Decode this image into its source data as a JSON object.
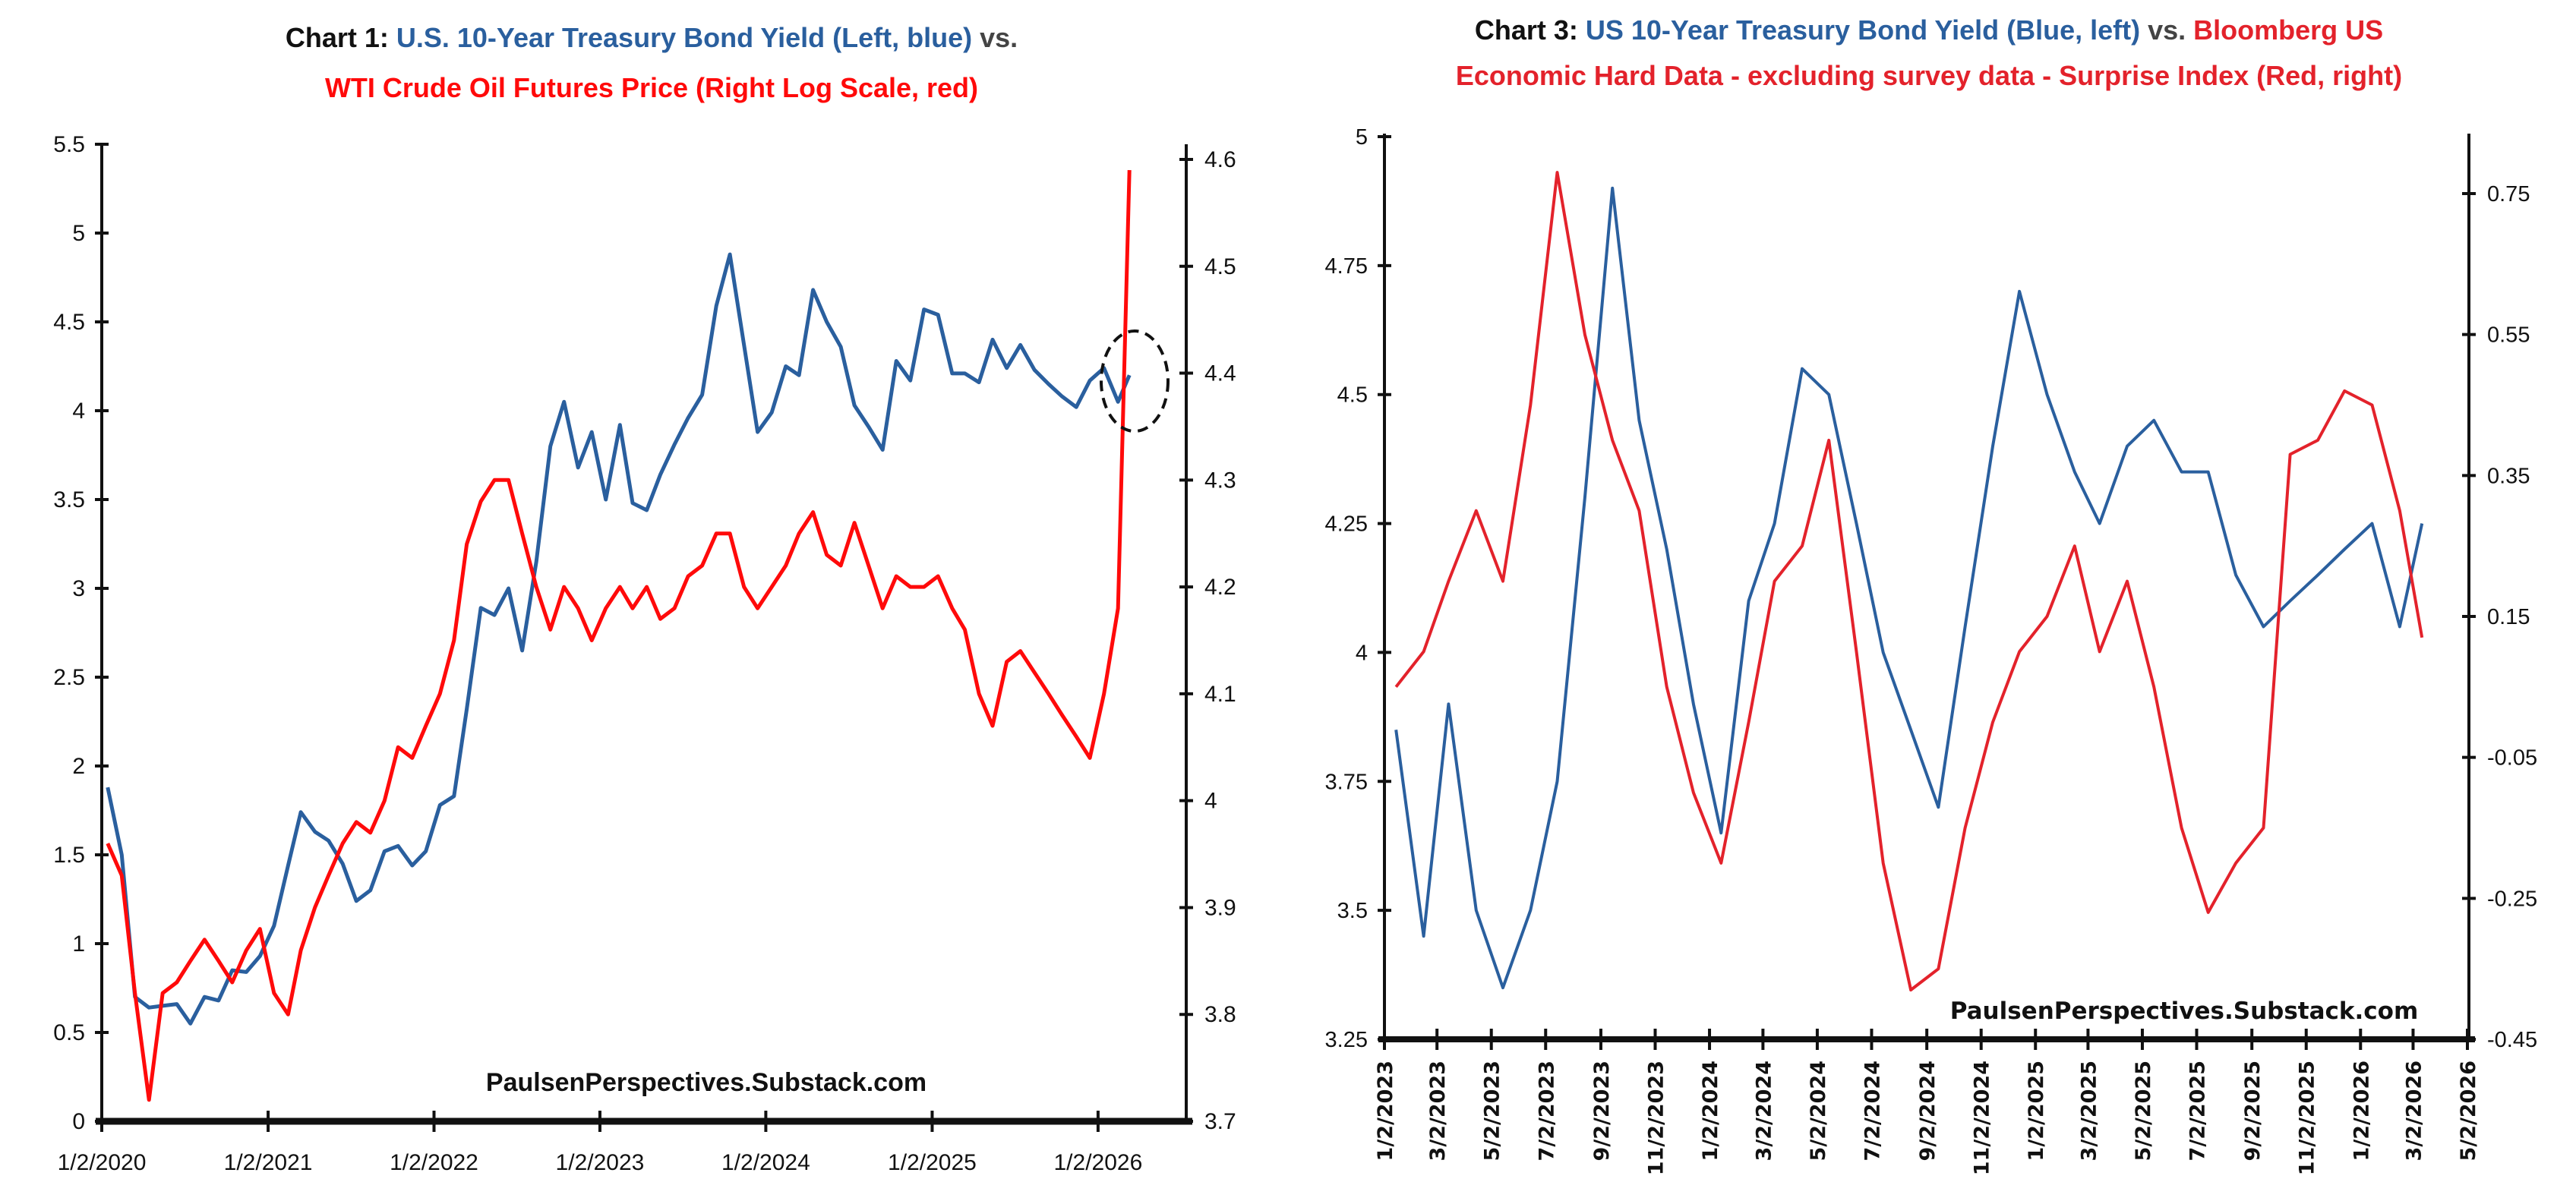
{
  "colors": {
    "blue": "#2a5f9e",
    "red1": "#ff0a0a",
    "red3": "#e3222b",
    "title_black": "#111111",
    "title_gray": "#444444"
  },
  "chart_data": [
    {
      "type": "line",
      "title_parts": [
        {
          "text": "Chart 1: ",
          "color": "#111111"
        },
        {
          "text": "U.S. 10-Year Treasury Bond Yield (Left, blue)",
          "color": "#2a5f9e"
        },
        {
          "text": " vs.",
          "color": "#444444"
        }
      ],
      "title_line2": "WTI Crude Oil Futures Price (Right Log Scale, red)",
      "watermark": "PaulsenPerspectives.Substack.com",
      "x_ticks": [
        "1/2/2020",
        "1/2/2021",
        "1/2/2022",
        "1/2/2023",
        "1/2/2024",
        "1/2/2025",
        "1/2/2026"
      ],
      "xlim": [
        "2020-01-02",
        "2026-07-15"
      ],
      "left_axis": {
        "ylim": [
          0,
          5.5
        ],
        "ticks": [
          "0",
          "0.5",
          "1",
          "1.5",
          "2",
          "2.5",
          "3",
          "3.5",
          "4",
          "4.5",
          "5",
          "5.5"
        ]
      },
      "right_axis": {
        "ylim": [
          3.7,
          4.6
        ],
        "scale": "log",
        "ticks": [
          "3.7",
          "3.8",
          "3.9",
          "4",
          "4.1",
          "4.2",
          "4.3",
          "4.4",
          "4.5",
          "4.6"
        ]
      },
      "annotation": "dashed circle around early-2026 endpoints",
      "grid": false,
      "x_start": "2020-01",
      "x_step": "month",
      "series": [
        {
          "axis": "left",
          "color": "#2a5f9e",
          "values": [
            1.88,
            1.5,
            0.7,
            0.64,
            0.65,
            0.66,
            0.55,
            0.7,
            0.68,
            0.85,
            0.84,
            0.93,
            1.1,
            1.44,
            1.74,
            1.63,
            1.58,
            1.45,
            1.24,
            1.3,
            1.52,
            1.55,
            1.44,
            1.52,
            1.78,
            1.83,
            2.32,
            2.89,
            2.85,
            3.0,
            2.65,
            3.15,
            3.8,
            4.05,
            3.68,
            3.88,
            3.5,
            3.92,
            3.48,
            3.44,
            3.64,
            3.81,
            3.96,
            4.09,
            4.59,
            4.88,
            4.37,
            3.88,
            3.99,
            4.25,
            4.2,
            4.68,
            4.5,
            4.36,
            4.03,
            3.91,
            3.78,
            4.28,
            4.17,
            4.57,
            4.54,
            4.21,
            4.21,
            4.16,
            4.4,
            4.24,
            4.37,
            4.23,
            4.15,
            4.08,
            4.02,
            4.17,
            4.24,
            4.05,
            4.2
          ]
        },
        {
          "axis": "right",
          "color": "#ff0a0a",
          "values": [
            3.96,
            3.93,
            3.82,
            3.72,
            3.82,
            3.83,
            3.85,
            3.87,
            3.85,
            3.83,
            3.86,
            3.88,
            3.82,
            3.8,
            3.86,
            3.9,
            3.93,
            3.96,
            3.98,
            3.97,
            4.0,
            4.05,
            4.04,
            4.07,
            4.1,
            4.15,
            4.24,
            4.28,
            4.3,
            4.3,
            4.25,
            4.2,
            4.16,
            4.2,
            4.18,
            4.15,
            4.18,
            4.2,
            4.18,
            4.2,
            4.17,
            4.18,
            4.21,
            4.22,
            4.25,
            4.25,
            4.2,
            4.18,
            4.2,
            4.22,
            4.25,
            4.27,
            4.23,
            4.22,
            4.26,
            4.22,
            4.18,
            4.21,
            4.2,
            4.2,
            4.21,
            4.18,
            4.16,
            4.1,
            4.07,
            4.13,
            4.14,
            4.12,
            4.1,
            4.08,
            4.06,
            4.04,
            4.1,
            4.18,
            4.59
          ]
        }
      ]
    },
    {
      "type": "line",
      "title_parts": [
        {
          "text": "Chart 3: ",
          "color": "#111111"
        },
        {
          "text": "US 10-Year Treasury Bond Yield (Blue, left)",
          "color": "#2a5f9e"
        },
        {
          "text": " vs. ",
          "color": "#444444"
        },
        {
          "text": "Bloomberg US",
          "color": "#e3222b"
        }
      ],
      "title_line2": "Economic Hard Data - excluding survey data - Surprise Index (Red, right)",
      "watermark": "PaulsenPerspectives.Substack.com",
      "x_ticks": [
        "1/2/2023",
        "3/2/2023",
        "5/2/2023",
        "7/2/2023",
        "9/2/2023",
        "11/2/2023",
        "1/2/2024",
        "3/2/2024",
        "5/2/2024",
        "7/2/2024",
        "9/2/2024",
        "11/2/2024",
        "1/2/2025",
        "3/2/2025",
        "5/2/2025",
        "7/2/2025",
        "9/2/2025",
        "11/2/2025",
        "1/2/2026",
        "3/2/2026",
        "5/2/2026"
      ],
      "xlim": [
        "2023-01-02",
        "2026-05-02"
      ],
      "left_axis": {
        "ylim": [
          3.25,
          5
        ],
        "ticks": [
          "3.25",
          "3.5",
          "3.75",
          "4",
          "4.25",
          "4.5",
          "4.75",
          "5"
        ]
      },
      "right_axis": {
        "ylim": [
          -0.45,
          0.83
        ],
        "ticks": [
          "-0.45",
          "-0.25",
          "-0.05",
          "0.15",
          "0.35",
          "0.55",
          "0.75"
        ]
      },
      "grid": false,
      "x_start": "2023-01",
      "x_step": "month",
      "series": [
        {
          "axis": "left",
          "color": "#2a5f9e",
          "values": [
            3.85,
            3.45,
            3.9,
            3.5,
            3.35,
            3.5,
            3.75,
            4.3,
            4.9,
            4.45,
            4.2,
            3.9,
            3.65,
            4.1,
            4.25,
            4.55,
            4.5,
            4.25,
            4.0,
            3.85,
            3.7,
            4.05,
            4.4,
            4.7,
            4.5,
            4.35,
            4.25,
            4.4,
            4.45,
            4.35,
            4.35,
            4.15,
            4.05,
            4.1,
            4.15,
            4.2,
            4.25,
            4.05,
            4.25
          ]
        },
        {
          "axis": "right",
          "color": "#e3222b",
          "values": [
            0.05,
            0.1,
            0.2,
            0.3,
            0.2,
            0.45,
            0.78,
            0.55,
            0.4,
            0.3,
            0.05,
            -0.1,
            -0.2,
            0.0,
            0.2,
            0.25,
            0.4,
            0.1,
            -0.2,
            -0.38,
            -0.35,
            -0.15,
            0.0,
            0.1,
            0.15,
            0.25,
            0.1,
            0.2,
            0.05,
            -0.15,
            -0.27,
            -0.2,
            -0.15,
            0.38,
            0.4,
            0.47,
            0.45,
            0.3,
            0.12
          ]
        }
      ]
    }
  ]
}
